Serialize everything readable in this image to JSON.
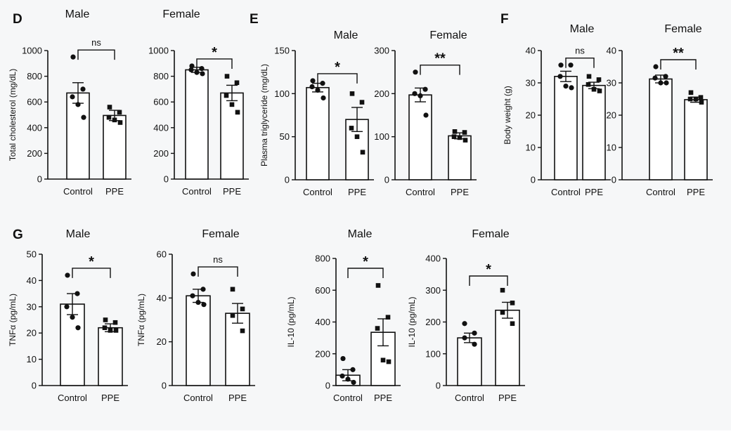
{
  "panel_labels": [
    "D",
    "E",
    "F",
    "G"
  ],
  "chart_data": [
    {
      "type": "bar",
      "panel": "D",
      "title": "Male",
      "ylabel": "Total cholesterol (mg/dL)",
      "categories": [
        "Control",
        "PPE"
      ],
      "values": [
        670,
        495
      ],
      "errors": [
        80,
        40
      ],
      "points": [
        [
          950,
          700,
          640,
          580,
          480
        ],
        [
          560,
          520,
          480,
          460,
          440
        ]
      ],
      "ylim": [
        0,
        1000
      ],
      "yticks": [
        0,
        200,
        400,
        600,
        800,
        1000
      ],
      "significance": "ns"
    },
    {
      "type": "bar",
      "panel": "D",
      "title": "Female",
      "ylabel": "",
      "categories": [
        "Control",
        "PPE"
      ],
      "values": [
        850,
        670
      ],
      "errors": [
        20,
        60
      ],
      "points": [
        [
          880,
          860,
          850,
          830,
          820
        ],
        [
          800,
          750,
          650,
          580,
          520
        ]
      ],
      "ylim": [
        0,
        1000
      ],
      "yticks": [
        0,
        200,
        400,
        600,
        800,
        1000
      ],
      "significance": "*"
    },
    {
      "type": "bar",
      "panel": "E",
      "title": "Male",
      "ylabel": "Plasma triglyceride (mg/dL)",
      "categories": [
        "Control",
        "PPE"
      ],
      "values": [
        107,
        70
      ],
      "errors": [
        5,
        14
      ],
      "points": [
        [
          115,
          112,
          108,
          104,
          95
        ],
        [
          100,
          90,
          60,
          50,
          32
        ]
      ],
      "ylim": [
        0,
        150
      ],
      "yticks": [
        0,
        50,
        100,
        150
      ],
      "significance": "*"
    },
    {
      "type": "bar",
      "panel": "E",
      "title": "Female",
      "ylabel": "",
      "categories": [
        "Control",
        "PPE"
      ],
      "values": [
        197,
        102
      ],
      "errors": [
        16,
        7
      ],
      "points": [
        [
          250,
          210,
          200,
          195,
          150
        ],
        [
          112,
          110,
          100,
          98,
          92
        ]
      ],
      "ylim": [
        0,
        300
      ],
      "yticks": [
        0,
        100,
        200,
        300
      ],
      "significance": "**"
    },
    {
      "type": "bar",
      "panel": "F",
      "title": "Male",
      "ylabel": "Body weight (g)",
      "categories": [
        "Control",
        "PPE"
      ],
      "values": [
        32,
        29.2
      ],
      "errors": [
        1.6,
        1
      ],
      "points": [
        [
          35.5,
          35.5,
          32,
          29,
          28.5
        ],
        [
          32,
          31,
          29.5,
          28,
          27.5
        ]
      ],
      "ylim": [
        0,
        40
      ],
      "yticks": [
        0,
        10,
        20,
        30,
        40
      ],
      "significance": "ns"
    },
    {
      "type": "bar",
      "panel": "F",
      "title": "Female",
      "ylabel": "",
      "categories": [
        "Control",
        "PPE"
      ],
      "values": [
        31.2,
        24.8
      ],
      "errors": [
        1.2,
        0.8
      ],
      "points": [
        [
          35,
          32,
          31.5,
          30,
          30
        ],
        [
          27,
          25.5,
          25,
          25,
          24
        ]
      ],
      "ylim": [
        0,
        40
      ],
      "yticks": [
        0,
        10,
        20,
        30,
        40
      ],
      "significance": "**"
    },
    {
      "type": "bar",
      "panel": "G",
      "title": "Male",
      "ylabel": "TNFα (pg/mL)",
      "categories": [
        "Control",
        "PPE"
      ],
      "values": [
        31,
        22
      ],
      "errors": [
        4,
        1.5
      ],
      "points": [
        [
          42,
          35,
          30,
          26,
          22
        ],
        [
          25,
          24,
          22,
          21,
          21
        ]
      ],
      "ylim": [
        0,
        50
      ],
      "yticks": [
        0,
        10,
        20,
        30,
        40,
        50
      ],
      "significance": "*"
    },
    {
      "type": "bar",
      "panel": "G",
      "title": "Female",
      "ylabel": "TNFα (pg/mL)",
      "categories": [
        "Control",
        "PPE"
      ],
      "values": [
        41,
        33
      ],
      "errors": [
        3,
        4.5
      ],
      "points": [
        [
          51,
          44,
          41,
          38,
          37
        ],
        [
          44,
          35,
          32,
          25
        ]
      ],
      "ylim": [
        0,
        60
      ],
      "yticks": [
        0,
        20,
        40,
        60
      ],
      "significance": "ns"
    },
    {
      "type": "bar",
      "panel": "G",
      "title": "Male",
      "ylabel": "IL-10 (pg/mL)",
      "categories": [
        "Control",
        "PPE"
      ],
      "values": [
        65,
        335
      ],
      "errors": [
        35,
        85
      ],
      "points": [
        [
          170,
          100,
          60,
          40,
          20
        ],
        [
          630,
          430,
          360,
          160,
          150
        ]
      ],
      "ylim": [
        0,
        800
      ],
      "yticks": [
        0,
        200,
        400,
        600,
        800
      ],
      "significance": "*"
    },
    {
      "type": "bar",
      "panel": "G",
      "title": "Female",
      "ylabel": "IL-10 (pg/mL)",
      "categories": [
        "Control",
        "PPE"
      ],
      "values": [
        150,
        237
      ],
      "errors": [
        15,
        25
      ],
      "points": [
        [
          195,
          165,
          150,
          130
        ],
        [
          300,
          260,
          230,
          195
        ]
      ],
      "ylim": [
        0,
        400
      ],
      "yticks": [
        0,
        100,
        200,
        300,
        400
      ],
      "significance": "*"
    }
  ]
}
